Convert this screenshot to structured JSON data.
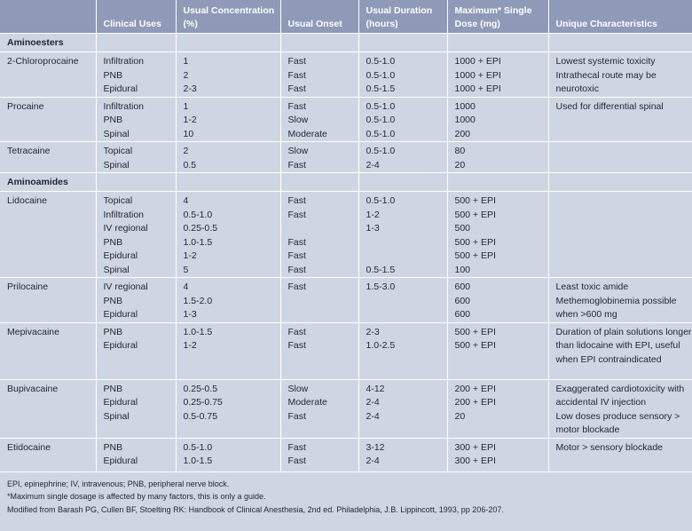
{
  "header": [
    "",
    "Clinical Uses",
    "Usual Concentration (%)",
    "Usual Onset",
    "Usual Duration (hours)",
    "Maximum* Single Dose (mg)",
    "Unique Characteristics"
  ],
  "rows": [
    {
      "section": "Aminoesters"
    },
    {
      "drug": "2-Chloroprocaine",
      "h": 50,
      "uses": [
        "Infiltration",
        "PNB",
        "Epidural"
      ],
      "conc": [
        "1",
        "2",
        "2-3"
      ],
      "onset": [
        "Fast",
        "Fast",
        "Fast"
      ],
      "duration": [
        "0.5-1.0",
        "0.5-1.0",
        "0.5-1.5"
      ],
      "dose": [
        "1000 + EPI",
        "1000 + EPI",
        "1000 + EPI"
      ],
      "notes": [
        "Lowest systemic toxicity",
        "Intrathecal route may be neurotoxic"
      ]
    },
    {
      "drug": "Procaine",
      "h": 49,
      "uses": [
        "Infiltration",
        "PNB",
        "Spinal"
      ],
      "conc": [
        "1",
        "1-2",
        "10"
      ],
      "onset": [
        "Fast",
        "Slow",
        "Moderate"
      ],
      "duration": [
        "0.5-1.0",
        "0.5-1.0",
        "0.5-1.0"
      ],
      "dose": [
        "1000",
        "1000",
        "200"
      ],
      "notes": [
        "Used for differential spinal"
      ]
    },
    {
      "drug": "Tetracaine",
      "h": 33,
      "uses": [
        "Topical",
        "Spinal"
      ],
      "conc": [
        "2",
        "0.5"
      ],
      "onset": [
        "Slow",
        "Fast"
      ],
      "duration": [
        "0.5-1.0",
        "2-4"
      ],
      "dose": [
        "80",
        "20"
      ],
      "notes": []
    },
    {
      "section": "Aminoamides"
    },
    {
      "drug": "Lidocaine",
      "h": 96,
      "uses": [
        "Topical",
        "Infiltration",
        "IV regional",
        "PNB",
        "Epidural",
        "Spinal"
      ],
      "conc": [
        "4",
        "0.5-1.0",
        "0.25-0.5",
        "1.0-1.5",
        "1-2",
        "5"
      ],
      "onset": [
        "Fast",
        "Fast",
        "",
        "Fast",
        "Fast",
        "Fast"
      ],
      "duration": [
        "0.5-1.0",
        "1-2",
        "1-3",
        "",
        "",
        "0.5-1.5"
      ],
      "dose": [
        "500 + EPI",
        "500 + EPI",
        "500",
        "500 + EPI",
        "500 + EPI",
        "100"
      ],
      "notes": []
    },
    {
      "drug": "Prilocaine",
      "h": 48,
      "uses": [
        "IV regional",
        "PNB",
        "Epidural"
      ],
      "conc": [
        "4",
        "1.5-2.0",
        "1-3"
      ],
      "onset": [
        "Fast"
      ],
      "duration": [
        "1.5-3.0"
      ],
      "dose": [
        "600",
        "600",
        "600"
      ],
      "notes": [
        "Least toxic amide",
        "Methemoglobinemia possible when >600 mg"
      ]
    },
    {
      "drug": "Mepivacaine",
      "h": 64,
      "uses": [
        "PNB",
        "Epidural"
      ],
      "conc": [
        "1.0-1.5",
        "1-2"
      ],
      "onset": [
        "Fast",
        "Fast"
      ],
      "duration": [
        "2-3",
        "1.0-2.5"
      ],
      "dose": [
        "500 + EPI",
        "500 + EPI"
      ],
      "notes": [
        "Duration of plain solutions longer than lidocaine with EPI, useful when EPI contraindicated"
      ]
    },
    {
      "drug": "Bupivacaine",
      "h": 65,
      "uses": [
        "PNB",
        "Epidural",
        "Spinal"
      ],
      "conc": [
        "0.25-0.5",
        "0.25-0.75",
        "0.5-0.75"
      ],
      "onset": [
        "Slow",
        "Moderate",
        "Fast"
      ],
      "duration": [
        "4-12",
        "2-4",
        "2-4"
      ],
      "dose": [
        "200 + EPI",
        "200 + EPI",
        "20"
      ],
      "notes": [
        "Exaggerated cardiotoxicity with accidental IV injection",
        "Low doses produce sensory > motor blockade"
      ]
    },
    {
      "drug": "Etidocaine",
      "h": 38,
      "uses": [
        "PNB",
        "Epidural"
      ],
      "conc": [
        "0.5-1.0",
        "1.0-1.5"
      ],
      "onset": [
        "Fast",
        "Fast"
      ],
      "duration": [
        "3-12",
        "2-4"
      ],
      "dose": [
        "300 + EPI",
        "300 + EPI"
      ],
      "notes": [
        "Motor > sensory blockade"
      ]
    }
  ],
  "footnotes": [
    "EPI, epinephrine; IV, intravenous; PNB, peripheral nerve block.",
    "*Maximum single dosage is affected by many factors, this is only a guide.",
    "Modified from Barash PG, Cullen BF, Stoelting RK: Handbook of Clinical Anesthesia, 2nd ed. Philadelphia, J.B. Lippincott, 1993, pp 206-207."
  ],
  "colors": {
    "header_bg": "#8e9ab7",
    "body_bg": "#cfd6e3",
    "rule": "#ffffff"
  }
}
